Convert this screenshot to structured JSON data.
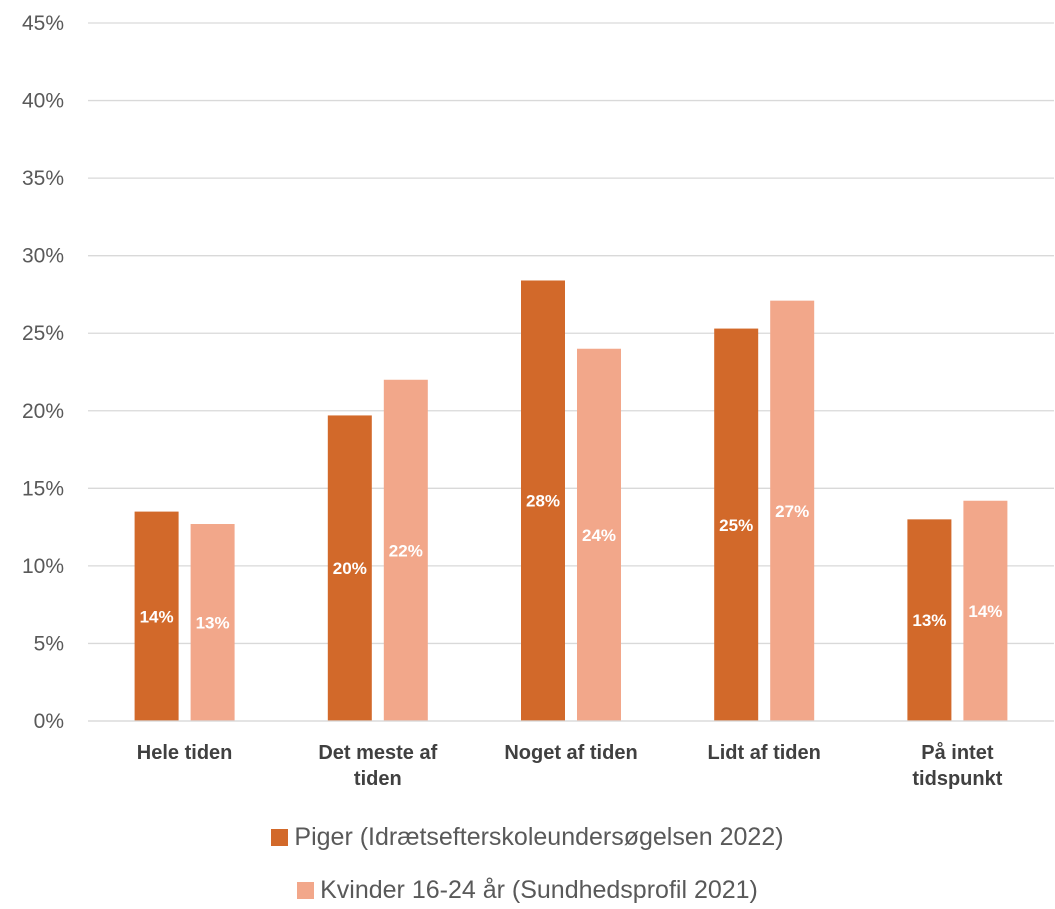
{
  "chart_data": {
    "type": "bar",
    "categories": [
      "Hele tiden",
      "Det meste af tiden",
      "Noget af tiden",
      "Lidt af tiden",
      "På intet tidspunkt"
    ],
    "category_label_lines": [
      [
        "Hele tiden"
      ],
      [
        "Det meste af",
        "tiden"
      ],
      [
        "Noget af tiden"
      ],
      [
        "Lidt af tiden"
      ],
      [
        "På intet",
        "tidspunkt"
      ]
    ],
    "series": [
      {
        "name": "Piger (Idrætsefterskoleundersøgelsen 2022)",
        "values": [
          13.5,
          19.7,
          28.4,
          25.3,
          13.0
        ],
        "labels": [
          "14%",
          "20%",
          "28%",
          "25%",
          "13%"
        ],
        "color": "#d2692a"
      },
      {
        "name": "Kvinder 16-24 år (Sundhedsprofil 2021)",
        "values": [
          12.7,
          22.0,
          24.0,
          27.1,
          14.2
        ],
        "labels": [
          "13%",
          "22%",
          "24%",
          "27%",
          "14%"
        ],
        "color": "#f2a78a"
      }
    ],
    "y_ticks": [
      "0%",
      "5%",
      "10%",
      "15%",
      "20%",
      "25%",
      "30%",
      "35%",
      "40%",
      "45%"
    ],
    "ylim": [
      0,
      45
    ],
    "grid": true,
    "legend_position": "bottom"
  }
}
